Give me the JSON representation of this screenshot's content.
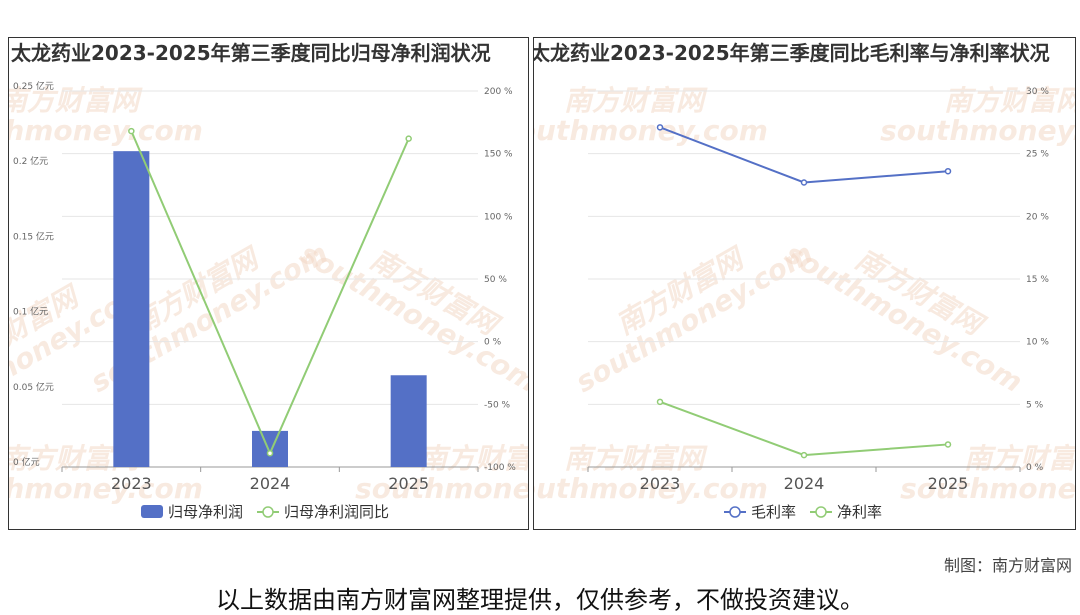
{
  "chart_data": [
    {
      "type": "bar",
      "title": "太龙药业2023-2025年第三季度同比归母净利润状况",
      "categories": [
        "2023",
        "2024",
        "2025"
      ],
      "series": [
        {
          "name": "归母净利润",
          "type": "bar",
          "axis": "left",
          "values": [
            0.21,
            0.024,
            0.061
          ],
          "color": "#5470c6"
        },
        {
          "name": "归母净利润同比",
          "type": "line",
          "axis": "right",
          "values": [
            168,
            -89,
            162
          ],
          "color": "#91cc75"
        }
      ],
      "y_left": {
        "ticks": [
          0,
          0.05,
          0.1,
          0.15,
          0.2,
          0.25
        ],
        "tick_labels": [
          "0 亿元",
          "0.05 亿元",
          "0.1 亿元",
          "0.15 亿元",
          "0.2 亿元",
          "0.25 亿元"
        ],
        "ylim": [
          0,
          0.25
        ]
      },
      "y_right": {
        "ticks": [
          -100,
          -50,
          0,
          50,
          100,
          150,
          200
        ],
        "tick_labels": [
          "-100 %",
          "-50 %",
          "0 %",
          "50 %",
          "100 %",
          "150 %",
          "200 %"
        ],
        "ylim": [
          -100,
          200
        ]
      },
      "grid": true,
      "legend": "bottom"
    },
    {
      "type": "line",
      "title": "太龙药业2023-2025年第三季度同比毛利率与净利率状况",
      "categories": [
        "2023",
        "2024",
        "2025"
      ],
      "series": [
        {
          "name": "毛利率",
          "values": [
            27.1,
            22.7,
            23.6
          ],
          "color": "#5470c6"
        },
        {
          "name": "净利率",
          "values": [
            5.2,
            0.95,
            1.8
          ],
          "color": "#91cc75"
        }
      ],
      "y_right": {
        "ticks": [
          0,
          5,
          10,
          15,
          20,
          25,
          30
        ],
        "tick_labels": [
          "0 %",
          "5 %",
          "10 %",
          "15 %",
          "20 %",
          "25 %",
          "30 %"
        ],
        "ylim": [
          0,
          30
        ]
      },
      "grid": true,
      "legend": "bottom"
    }
  ],
  "watermark": {
    "cn": "南方财富网",
    "en": "southmoney.com"
  },
  "credit": "制图：南方财富网",
  "disclaimer": "以上数据由南方财富网整理提供，仅供参考，不做投资建议。"
}
